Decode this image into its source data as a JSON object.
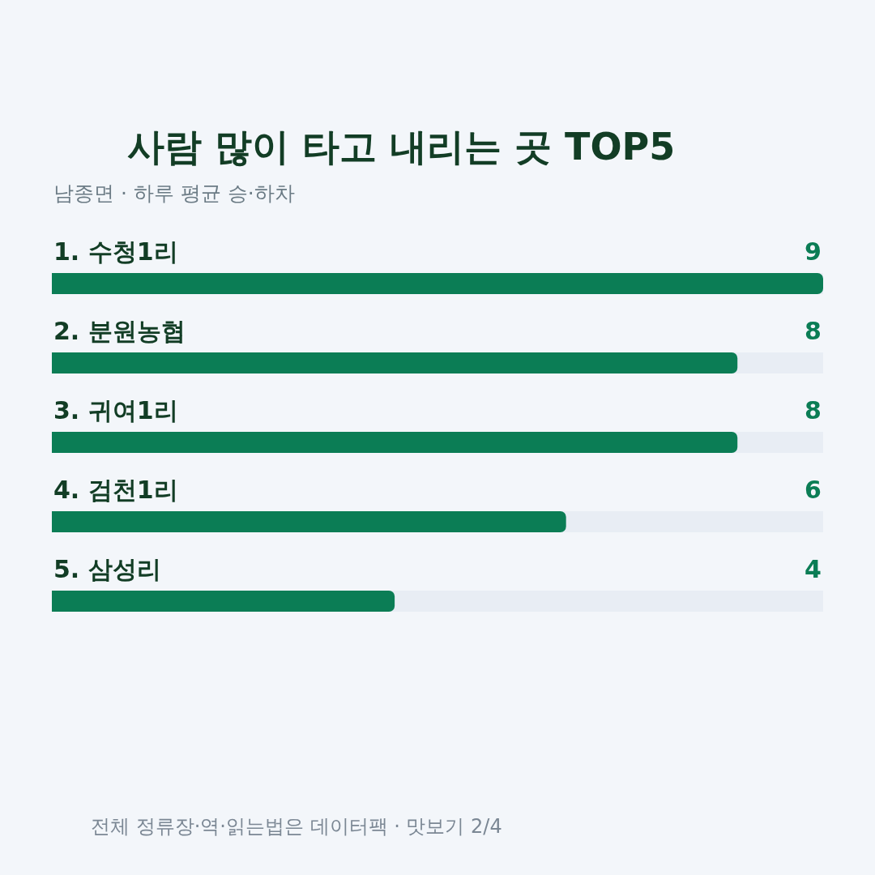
{
  "chart_data": {
    "type": "bar",
    "orientation": "horizontal",
    "title": "사람 많이 타고 내리는 곳 TOP5",
    "subtitle": "남종면 · 하루 평균 승·하차",
    "categories": [
      "1. 수청1리",
      "2. 분원농협",
      "3. 귀여1리",
      "4. 검천1리",
      "5. 삼성리"
    ],
    "values": [
      9,
      8,
      8,
      6,
      4
    ],
    "color": "#0b7d55",
    "xlim": [
      0,
      9
    ],
    "data_labels": true,
    "tick_labels": "y",
    "annotations": [
      "전체 정류장·역·읽는법은 데이터팩 · 맛보기 2/4"
    ]
  }
}
